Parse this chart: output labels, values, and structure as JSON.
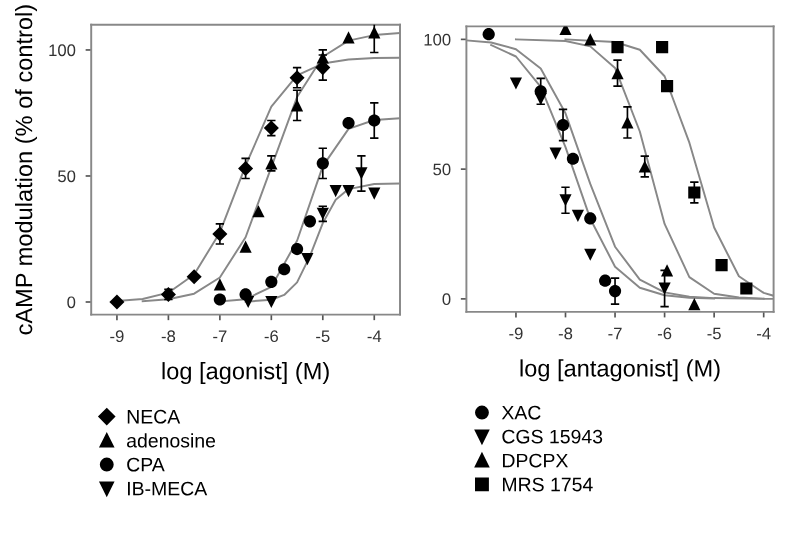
{
  "chart_data": [
    {
      "type": "scatter",
      "xlabel": "log [agonist] (M)",
      "ylabel": "cAMP modulation (% of control)",
      "xlim": [
        -9.5,
        -3.5
      ],
      "ylim": [
        -5,
        110
      ],
      "xticks": [
        -9,
        -8,
        -7,
        -6,
        -5,
        -4
      ],
      "yticks": [
        0,
        50,
        100
      ],
      "grid": false,
      "legend": "bottom",
      "series": [
        {
          "name": "NECA",
          "color": "#000000",
          "marker": "diamond",
          "x": [
            -9,
            -8,
            -7.5,
            -7,
            -6.5,
            -6,
            -5.5,
            -5
          ],
          "values": [
            0,
            3,
            10,
            27,
            53,
            69,
            89,
            93
          ],
          "errors": [
            null,
            2,
            null,
            4,
            4,
            3,
            4,
            5
          ]
        },
        {
          "name": "adenosine",
          "color": "#000000",
          "marker": "triangle",
          "x": [
            -7,
            -6.5,
            -6.25,
            -6,
            -5.5,
            -5,
            -4.5,
            -4
          ],
          "values": [
            7,
            22,
            36,
            55,
            78,
            97,
            105,
            107
          ],
          "errors": [
            null,
            null,
            null,
            3,
            6,
            3,
            null,
            8
          ]
        },
        {
          "name": "CPA",
          "color": "#000000",
          "marker": "circle",
          "x": [
            -7,
            -6.5,
            -6,
            -5.75,
            -5.5,
            -5.25,
            -5,
            -4.5,
            -4
          ],
          "values": [
            1,
            3,
            8,
            13,
            21,
            32,
            55,
            71,
            72
          ],
          "errors": [
            null,
            null,
            null,
            null,
            null,
            null,
            6,
            null,
            7
          ]
        },
        {
          "name": "IB-MECA",
          "color": "#000000",
          "marker": "triangle_down",
          "x": [
            -6.45,
            -6,
            -5.3,
            -5,
            -4.75,
            -4.5,
            -4.25,
            -4
          ],
          "values": [
            0,
            0,
            17,
            35,
            44,
            44,
            51,
            43
          ],
          "errors": [
            null,
            null,
            null,
            3,
            null,
            null,
            7,
            null
          ]
        },
        {
          "type": "line",
          "color": "#888888",
          "marker": "none",
          "x": [
            -9,
            -8.5,
            -8,
            -7.5,
            -7,
            -6.5,
            -6,
            -5.5,
            -5,
            -4.5,
            -4,
            -3.5
          ],
          "values": [
            0.4,
            1.2,
            3.7,
            10.9,
            27.6,
            54.1,
            77.5,
            89.9,
            94.6,
            96.2,
            96.8,
            96.9
          ]
        },
        {
          "type": "line",
          "color": "#888888",
          "marker": "none",
          "x": [
            -8.5,
            -8,
            -7.5,
            -7,
            -6.5,
            -6,
            -5.5,
            -5,
            -4.5,
            -4,
            -3.5
          ],
          "values": [
            0.3,
            1.1,
            3.3,
            9.7,
            25.7,
            53.5,
            81.3,
            97.3,
            103.7,
            105.9,
            106.7
          ]
        },
        {
          "type": "line",
          "color": "#888888",
          "marker": "none",
          "x": [
            -7,
            -6.5,
            -6,
            -5.5,
            -5,
            -4.5,
            -4,
            -3.5
          ],
          "values": [
            0.2,
            1.1,
            6.0,
            24.3,
            53.9,
            68.7,
            72.2,
            72.9
          ]
        },
        {
          "type": "line",
          "color": "#888888",
          "marker": "none",
          "x": [
            -6.5,
            -6,
            -5.75,
            -5.5,
            -5.25,
            -5,
            -4.75,
            -4.5,
            -4,
            -3.5
          ],
          "values": [
            0.1,
            0.9,
            2.8,
            7.8,
            18.2,
            31.3,
            40.6,
            44.8,
            46.8,
            47
          ]
        }
      ]
    },
    {
      "type": "scatter",
      "xlabel": "log [antagonist] (M)",
      "xlim": [
        -10,
        -3.8
      ],
      "ylim": [
        -5,
        105
      ],
      "xticks": [
        -9,
        -8,
        -7,
        -6,
        -5,
        -4
      ],
      "yticks": [
        0,
        50,
        100
      ],
      "grid": false,
      "legend": "bottom",
      "series": [
        {
          "name": "XAC",
          "color": "#000000",
          "marker": "circle",
          "x": [
            -9.55,
            -8.5,
            -8.05,
            -7.85,
            -7.5,
            -7.2,
            -7.0
          ],
          "values": [
            102,
            80,
            67,
            54,
            31,
            7,
            3
          ],
          "errors": [
            null,
            5,
            6,
            null,
            null,
            null,
            5
          ]
        },
        {
          "name": "CGS 15943",
          "color": "#000000",
          "marker": "triangle_down",
          "x": [
            -9.0,
            -8.5,
            -8.2,
            -8.0,
            -7.75,
            -7.5,
            -6.0
          ],
          "values": [
            83,
            77,
            56,
            38,
            32,
            17,
            4
          ],
          "errors": [
            null,
            null,
            null,
            5,
            null,
            null,
            7
          ]
        },
        {
          "name": "DPCPX",
          "color": "#000000",
          "marker": "triangle",
          "x": [
            -8.0,
            -7.5,
            -6.95,
            -6.75,
            -6.4,
            -5.95,
            -5.4
          ],
          "values": [
            104,
            100,
            87,
            68,
            51,
            11,
            -2
          ],
          "errors": [
            null,
            null,
            5,
            6,
            4,
            null,
            null
          ]
        },
        {
          "name": "MRS 1754",
          "color": "#000000",
          "marker": "square",
          "x": [
            -6.95,
            -6.05,
            -5.95,
            -5.4,
            -4.85,
            -4.35
          ],
          "values": [
            97,
            97,
            82,
            41,
            13,
            4
          ],
          "errors": [
            null,
            null,
            null,
            4,
            null,
            null
          ]
        },
        {
          "type": "line",
          "color": "#888888",
          "marker": "none",
          "x": [
            -10,
            -9.5,
            -9,
            -8.5,
            -8,
            -7.5,
            -7,
            -6.5,
            -6,
            -5.5,
            -5,
            -4,
            -3.8
          ],
          "values": [
            99.6,
            98.8,
            96.2,
            88.8,
            71.5,
            44.3,
            20.1,
            7.4,
            2.5,
            0.8,
            0.3,
            0,
            0
          ]
        },
        {
          "type": "line",
          "color": "#888888",
          "marker": "none",
          "x": [
            -9.5,
            -9,
            -8.5,
            -8,
            -7.5,
            -7,
            -6.5,
            -6,
            -5.5,
            -5
          ],
          "values": [
            97.8,
            93.4,
            81.7,
            58.5,
            30.9,
            12.4,
            4.3,
            1.4,
            0.4,
            0.1
          ]
        },
        {
          "type": "line",
          "color": "#888888",
          "marker": "none",
          "x": [
            -9,
            -8,
            -7.5,
            -7,
            -6.5,
            -6,
            -5.5,
            -5,
            -4.5,
            -4
          ],
          "values": [
            100,
            99.4,
            97.3,
            89.0,
            64.5,
            28.9,
            8.4,
            2.0,
            0.5,
            0.1
          ]
        },
        {
          "type": "line",
          "color": "#888888",
          "marker": "none",
          "x": [
            -8,
            -7,
            -6.5,
            -6,
            -5.5,
            -5,
            -4.5,
            -4,
            -3.8
          ],
          "values": [
            100,
            99.0,
            96.0,
            85.8,
            60.2,
            27.5,
            8.7,
            2.3,
            1.2
          ]
        }
      ]
    }
  ]
}
